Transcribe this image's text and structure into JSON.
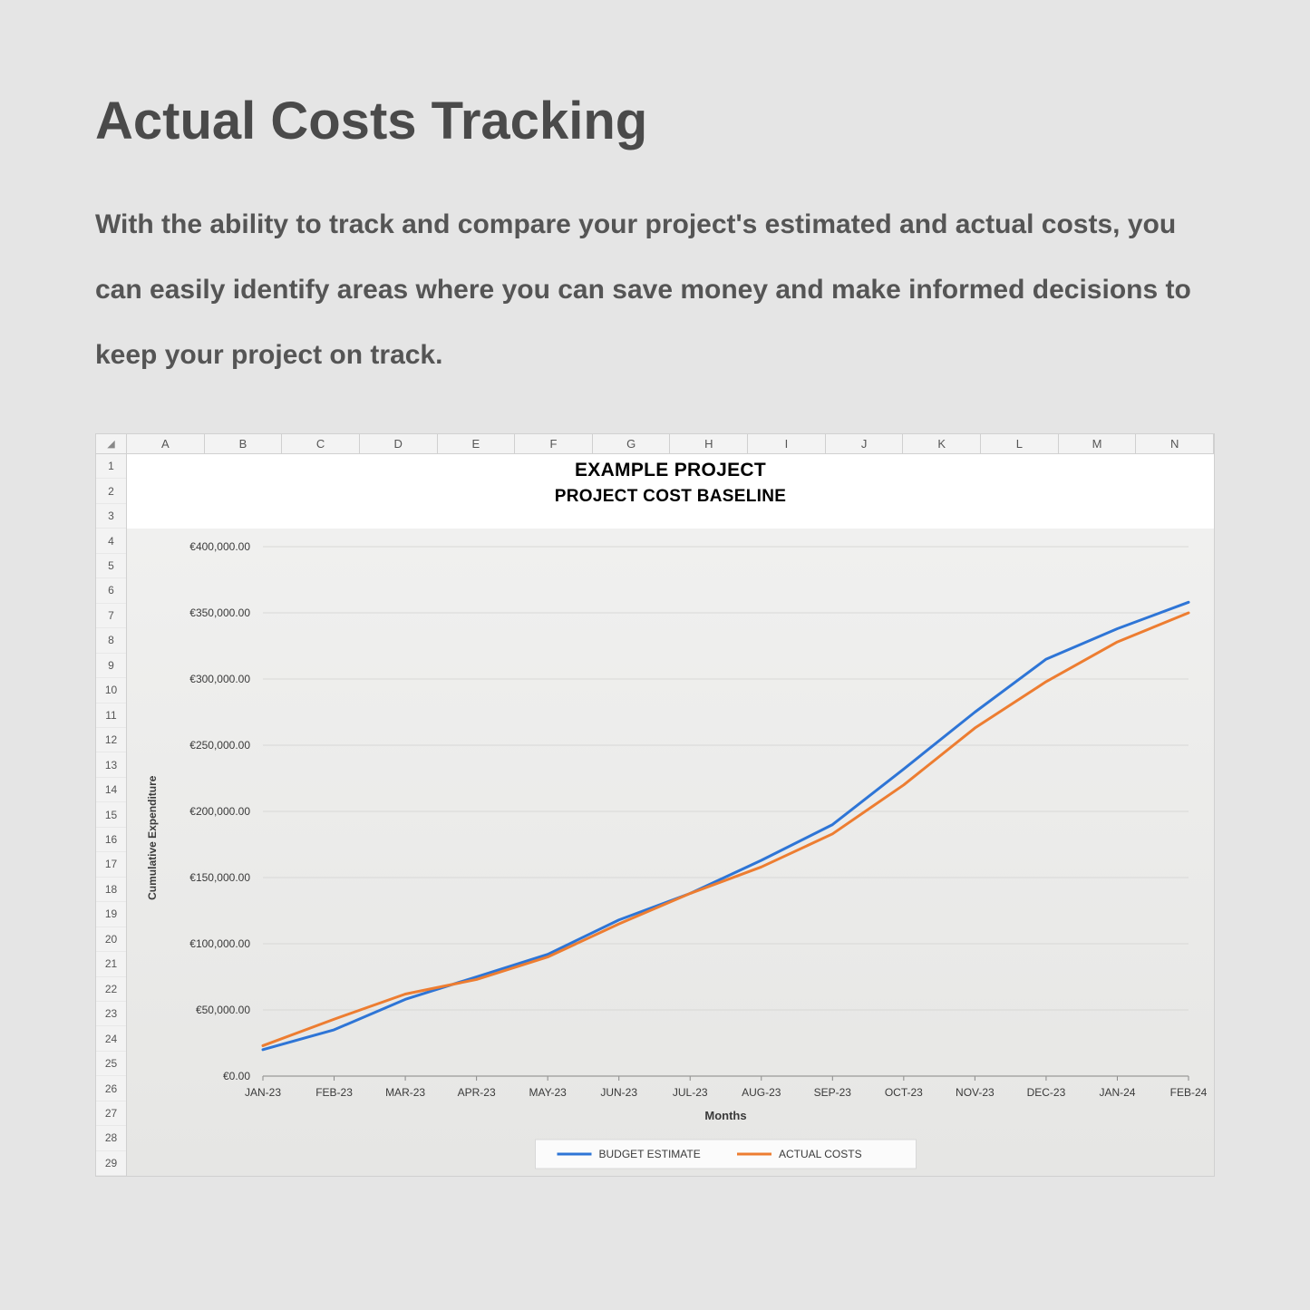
{
  "page": {
    "heading": "Actual Costs Tracking",
    "description": "With the ability to track and compare your project's estimated and actual costs, you can easily identify areas where you can save money and make informed decisions to keep your project on track."
  },
  "spreadsheet": {
    "columns": [
      "A",
      "B",
      "C",
      "D",
      "E",
      "F",
      "G",
      "H",
      "I",
      "J",
      "K",
      "L",
      "M",
      "N"
    ],
    "row_count": 29,
    "title1": "EXAMPLE PROJECT",
    "title2": "PROJECT COST BASELINE"
  },
  "chart": {
    "type": "line",
    "ylabel": "Cumulative Expenditure",
    "xlabel": "Months",
    "ylim": [
      0,
      400000
    ],
    "ytick_step": 50000,
    "ytick_labels": [
      "€0.00",
      "€50,000.00",
      "€100,000.00",
      "€150,000.00",
      "€200,000.00",
      "€250,000.00",
      "€300,000.00",
      "€350,000.00",
      "€400,000.00"
    ],
    "categories": [
      "JAN-23",
      "FEB-23",
      "MAR-23",
      "APR-23",
      "MAY-23",
      "JUN-23",
      "JUL-23",
      "AUG-23",
      "SEP-23",
      "OCT-23",
      "NOV-23",
      "DEC-23",
      "JAN-24",
      "FEB-24"
    ],
    "series": [
      {
        "name": "BUDGET ESTIMATE",
        "color": "#2e75d6",
        "line_width": 3,
        "values": [
          20000,
          35000,
          58000,
          75000,
          92000,
          118000,
          138000,
          163000,
          190000,
          232000,
          275000,
          315000,
          338000,
          358000
        ]
      },
      {
        "name": "ACTUAL COSTS",
        "color": "#ed7d31",
        "line_width": 3,
        "values": [
          23000,
          43000,
          62000,
          73000,
          90000,
          115000,
          138000,
          158000,
          183000,
          220000,
          263000,
          298000,
          328000,
          350000
        ]
      }
    ],
    "grid_color": "#d8d8d6",
    "background_gradient": [
      "#f0f0ef",
      "#e6e6e4"
    ],
    "legend_bg": "#fbfbfb",
    "legend_border": "#d8d8d8",
    "axis_text_color": "#3a3a3a"
  }
}
